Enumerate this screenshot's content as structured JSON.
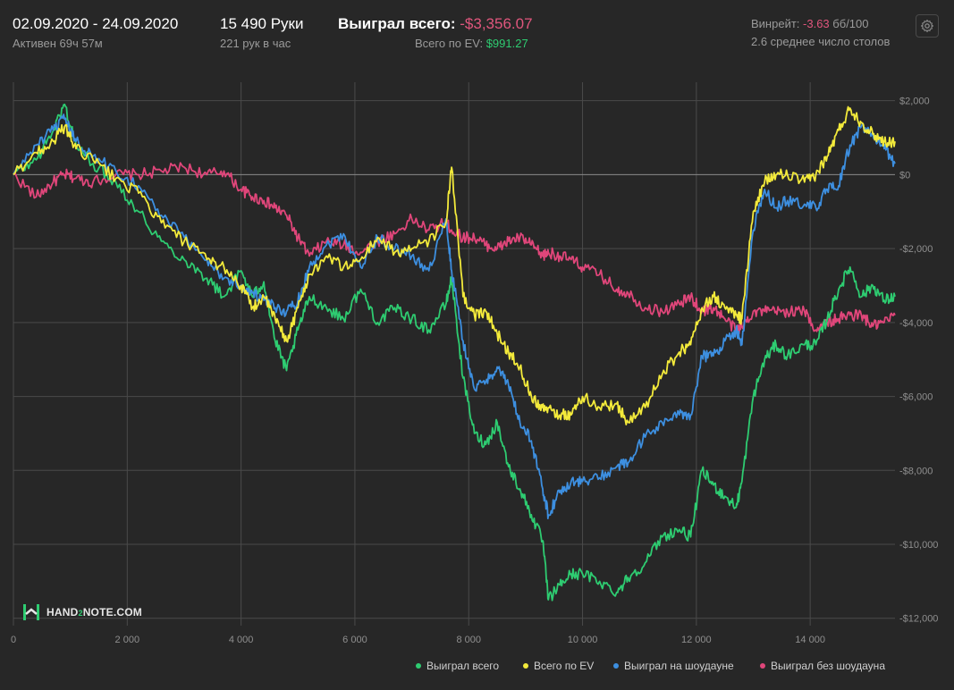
{
  "header": {
    "date_range": "02.09.2020 - 24.09.2020",
    "active": "Активен 69ч 57м",
    "hands": "15 490 Руки",
    "hands_per_hour": "221 рук в час",
    "won_total_label": "Выиграл всего:",
    "won_total_value": "-$3,356.07",
    "ev_label": "Всего по EV:",
    "ev_value": "$991.27",
    "winrate_label": "Винрейт:",
    "winrate_value": "-3.63",
    "winrate_unit": "бб/100",
    "tables": "2.6 среднее число столов"
  },
  "logo": {
    "text_a": "HAND",
    "text_b": "2",
    "text_c": "NOTE.COM"
  },
  "icons": {
    "settings": "gear-icon",
    "logo": "hand2note-logo-icon"
  },
  "colors": {
    "background": "#272727",
    "grid": "#4a4a4a",
    "zero_line": "#8a8a8a",
    "won_total": "#2ecc71",
    "ev": "#f3ea3b",
    "showdown": "#3d8fe0",
    "non_showdown": "#e0467a"
  },
  "chart_data": {
    "type": "line",
    "xlim": [
      0,
      15490
    ],
    "ylim": [
      -12200,
      2500
    ],
    "x_ticks": [
      0,
      2000,
      4000,
      6000,
      8000,
      10000,
      12000,
      14000
    ],
    "x_tick_labels": [
      "0",
      "2 000",
      "4 000",
      "6 000",
      "8 000",
      "10 000",
      "12 000",
      "14 000"
    ],
    "y_ticks": [
      2000,
      0,
      -2000,
      -4000,
      -6000,
      -8000,
      -10000,
      -12000
    ],
    "y_tick_labels": [
      "$2,000",
      "$0",
      "-$2,000",
      "-$4,000",
      "-$6,000",
      "-$8,000",
      "-$10,000",
      "-$12,000"
    ],
    "legend_position": "bottom-right",
    "grid": true,
    "series": [
      {
        "name": "Выиграл всего",
        "key": "won_total",
        "x": [
          0,
          400,
          700,
          900,
          1100,
          1400,
          1800,
          2200,
          2600,
          3000,
          3400,
          3700,
          4000,
          4200,
          4400,
          4600,
          4800,
          5000,
          5200,
          5500,
          5800,
          6100,
          6400,
          6700,
          7000,
          7300,
          7600,
          7700,
          7900,
          8100,
          8300,
          8500,
          8700,
          8900,
          9100,
          9300,
          9400,
          9600,
          9800,
          10000,
          10300,
          10600,
          10800,
          11100,
          11400,
          11700,
          11900,
          12100,
          12300,
          12500,
          12700,
          12800,
          13000,
          13200,
          13400,
          13600,
          13900,
          14100,
          14300,
          14500,
          14700,
          14900,
          15100,
          15300,
          15490
        ],
        "values": [
          0,
          400,
          1200,
          1900,
          800,
          300,
          -200,
          -1000,
          -1800,
          -2300,
          -2800,
          -3300,
          -2600,
          -3300,
          -2900,
          -4500,
          -5300,
          -4200,
          -3300,
          -3600,
          -3900,
          -3100,
          -4000,
          -3600,
          -3900,
          -4200,
          -3500,
          -2800,
          -5500,
          -7000,
          -7300,
          -6700,
          -7900,
          -8500,
          -9200,
          -9900,
          -11500,
          -11100,
          -10800,
          -10800,
          -11000,
          -11300,
          -10900,
          -10500,
          -9800,
          -9600,
          -9800,
          -8000,
          -8400,
          -8700,
          -9000,
          -8300,
          -6000,
          -5000,
          -4600,
          -4900,
          -4600,
          -4600,
          -3900,
          -3100,
          -2500,
          -3300,
          -3000,
          -3400,
          -3300
        ]
      },
      {
        "name": "Всего по EV",
        "key": "ev",
        "x": [
          0,
          400,
          700,
          900,
          1100,
          1400,
          1800,
          2200,
          2600,
          3000,
          3400,
          3700,
          4000,
          4200,
          4400,
          4600,
          4800,
          5000,
          5200,
          5500,
          5800,
          6100,
          6400,
          6700,
          7000,
          7300,
          7600,
          7700,
          7900,
          8100,
          8300,
          8500,
          8700,
          8900,
          9100,
          9300,
          9400,
          9600,
          9800,
          10000,
          10300,
          10600,
          10800,
          11100,
          11400,
          11700,
          11900,
          12100,
          12300,
          12500,
          12700,
          12800,
          13000,
          13200,
          13400,
          13600,
          13900,
          14100,
          14300,
          14500,
          14700,
          14900,
          15100,
          15300,
          15490
        ],
        "values": [
          0,
          600,
          900,
          1300,
          700,
          400,
          -100,
          -500,
          -1300,
          -1800,
          -2300,
          -2500,
          -3000,
          -3600,
          -3300,
          -3900,
          -4500,
          -3600,
          -2700,
          -2200,
          -2500,
          -2300,
          -1700,
          -2100,
          -2000,
          -1800,
          -1300,
          200,
          -3300,
          -3800,
          -3700,
          -4300,
          -4800,
          -5200,
          -6000,
          -6300,
          -6300,
          -6500,
          -6500,
          -6000,
          -6300,
          -6200,
          -6700,
          -6300,
          -5400,
          -4800,
          -4600,
          -3600,
          -3300,
          -3600,
          -3800,
          -3900,
          -1000,
          -200,
          0,
          0,
          -200,
          0,
          500,
          1200,
          1800,
          1400,
          1100,
          900,
          900
        ]
      },
      {
        "name": "Выиграл на шоудауне",
        "key": "showdown",
        "x": [
          0,
          400,
          700,
          900,
          1100,
          1400,
          1800,
          2200,
          2600,
          3000,
          3400,
          3700,
          4000,
          4200,
          4400,
          4600,
          4800,
          5000,
          5200,
          5500,
          5800,
          6100,
          6400,
          6700,
          7000,
          7300,
          7600,
          7700,
          7900,
          8100,
          8300,
          8500,
          8700,
          8900,
          9100,
          9300,
          9400,
          9600,
          9800,
          10000,
          10300,
          10600,
          10800,
          11100,
          11400,
          11700,
          11900,
          12100,
          12300,
          12500,
          12700,
          12800,
          13000,
          13200,
          13400,
          13600,
          13900,
          14100,
          14300,
          14500,
          14700,
          14900,
          15100,
          15300,
          15490
        ],
        "values": [
          0,
          800,
          1200,
          1500,
          900,
          500,
          100,
          -300,
          -1100,
          -1700,
          -2300,
          -2800,
          -3000,
          -3200,
          -3400,
          -3600,
          -3700,
          -3400,
          -2500,
          -1900,
          -1600,
          -2500,
          -1700,
          -2000,
          -2200,
          -2600,
          -1200,
          -2600,
          -4500,
          -5800,
          -5600,
          -5200,
          -5700,
          -6700,
          -7200,
          -8500,
          -9200,
          -8600,
          -8300,
          -8300,
          -8200,
          -7900,
          -7800,
          -7100,
          -6700,
          -6500,
          -6500,
          -4900,
          -4900,
          -4500,
          -4200,
          -4600,
          -1500,
          -400,
          -900,
          -700,
          -800,
          -900,
          -400,
          -300,
          800,
          1300,
          1100,
          700,
          300
        ]
      },
      {
        "name": "Выиграл без шоудауна",
        "key": "non_showdown",
        "x": [
          0,
          400,
          700,
          900,
          1100,
          1400,
          1800,
          2200,
          2600,
          3000,
          3400,
          3700,
          4000,
          4200,
          4400,
          4600,
          4800,
          5000,
          5200,
          5500,
          5800,
          6100,
          6400,
          6700,
          7000,
          7300,
          7600,
          7700,
          7900,
          8100,
          8300,
          8500,
          8700,
          8900,
          9100,
          9300,
          9400,
          9600,
          9800,
          10000,
          10300,
          10600,
          10800,
          11100,
          11400,
          11700,
          11900,
          12100,
          12300,
          12500,
          12700,
          12800,
          13000,
          13200,
          13400,
          13600,
          13900,
          14100,
          14300,
          14500,
          14700,
          14900,
          15100,
          15300,
          15490
        ],
        "values": [
          0,
          -600,
          -200,
          0,
          -100,
          -200,
          0,
          0,
          100,
          200,
          0,
          100,
          -400,
          -600,
          -700,
          -900,
          -1100,
          -1700,
          -2200,
          -1800,
          -1900,
          -2100,
          -1800,
          -1600,
          -1200,
          -1500,
          -1300,
          -1500,
          -1700,
          -1700,
          -1900,
          -2000,
          -1800,
          -1700,
          -1900,
          -2200,
          -2100,
          -2200,
          -2300,
          -2500,
          -2700,
          -3100,
          -3200,
          -3600,
          -3700,
          -3500,
          -3300,
          -3700,
          -3600,
          -3900,
          -4200,
          -4100,
          -3700,
          -3700,
          -3700,
          -3700,
          -3700,
          -4200,
          -4000,
          -3900,
          -3800,
          -3800,
          -4100,
          -4000,
          -3800
        ]
      }
    ]
  },
  "legend": [
    {
      "label": "Выиграл всего",
      "key": "won_total"
    },
    {
      "label": "Всего по EV",
      "key": "ev"
    },
    {
      "label": "Выиграл на шоудауне",
      "key": "showdown"
    },
    {
      "label": "Выиграл без шоудауна",
      "key": "non_showdown"
    }
  ]
}
